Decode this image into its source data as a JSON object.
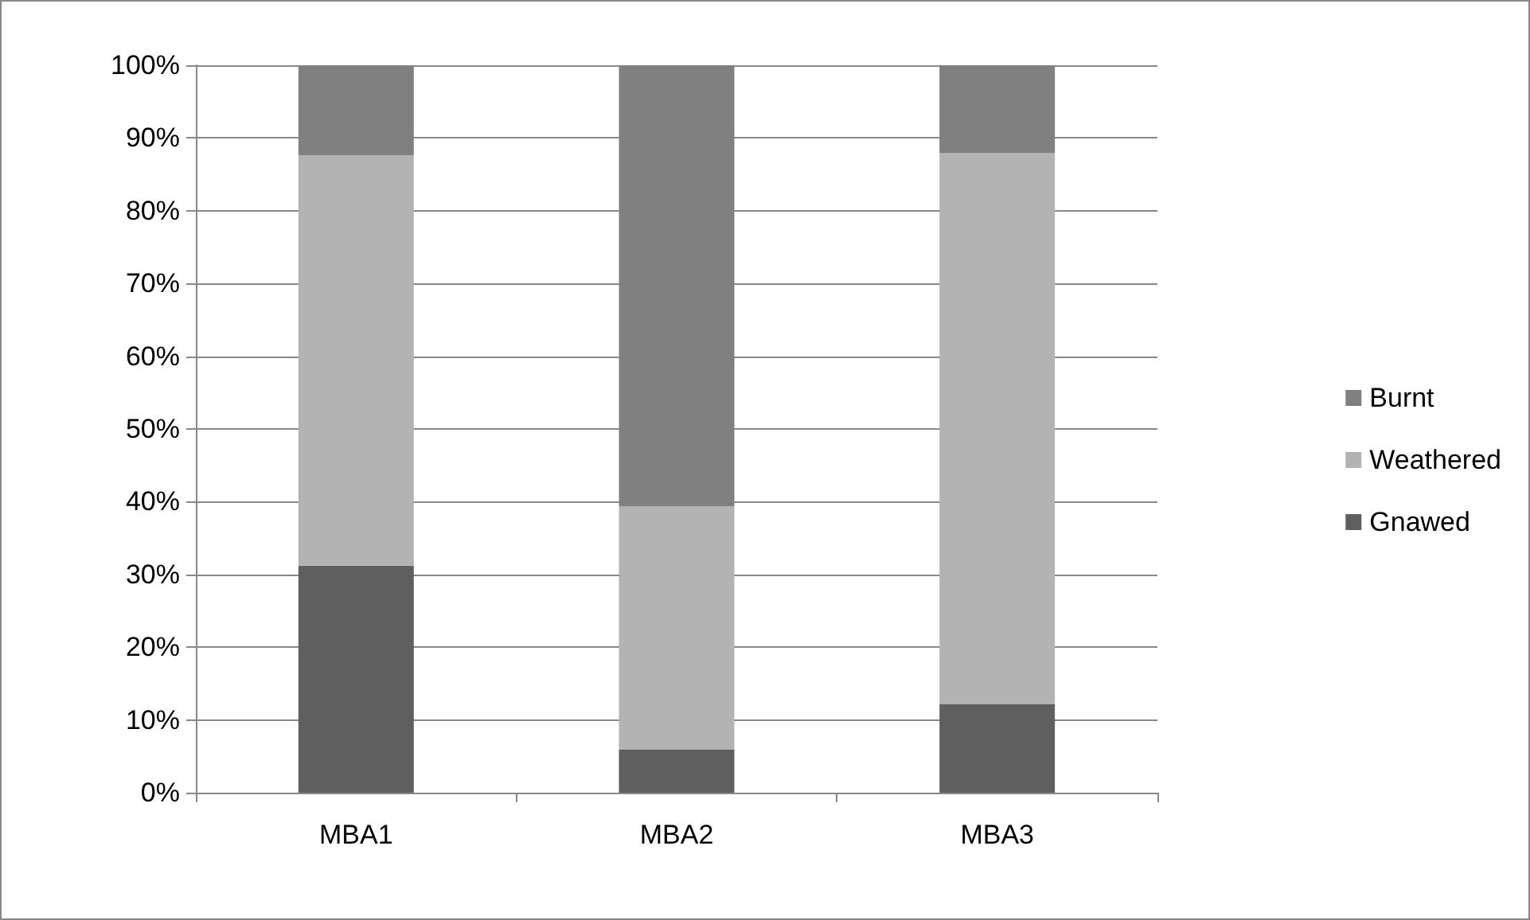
{
  "chart_data": {
    "type": "bar",
    "stacked": true,
    "categories": [
      "MBA1",
      "MBA2",
      "MBA3"
    ],
    "series": [
      {
        "name": "Gnawed",
        "color": "#5f5f5f",
        "values": [
          31.2,
          5.9,
          12.2
        ]
      },
      {
        "name": "Weathered",
        "color": "#b3b3b3",
        "values": [
          56.4,
          33.5,
          75.7
        ]
      },
      {
        "name": "Burnt",
        "color": "#808080",
        "values": [
          12.4,
          60.6,
          12.1
        ]
      }
    ],
    "ylim": [
      0,
      100
    ],
    "yticks": [
      {
        "value": 0,
        "label": "0%"
      },
      {
        "value": 10,
        "label": "10%"
      },
      {
        "value": 20,
        "label": "20%"
      },
      {
        "value": 30,
        "label": "30%"
      },
      {
        "value": 40,
        "label": "40%"
      },
      {
        "value": 50,
        "label": "50%"
      },
      {
        "value": 60,
        "label": "60%"
      },
      {
        "value": 70,
        "label": "70%"
      },
      {
        "value": 80,
        "label": "80%"
      },
      {
        "value": 90,
        "label": "90%"
      },
      {
        "value": 100,
        "label": "100%"
      }
    ],
    "grid": "y",
    "legend": "right"
  }
}
